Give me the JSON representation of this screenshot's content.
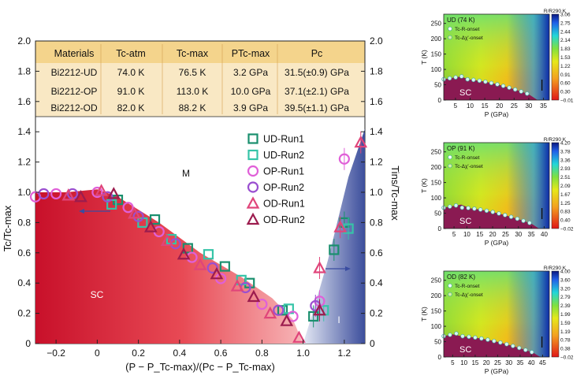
{
  "chart_data": [
    {
      "type": "scatter",
      "xlabel": "(P − P_Tc-max)/(Pc − P_Tc-max)",
      "ylabel": "Tc/Tc-max",
      "y2label": "Tins/Tc-max",
      "xlim": [
        -0.3,
        1.3
      ],
      "ylim": [
        0,
        1.45
      ],
      "xticks": [
        "−0.2",
        "0",
        "0.2",
        "0.4",
        "0.6",
        "0.8",
        "1.0",
        "1.2"
      ],
      "yticks": [
        "0",
        "0.2",
        "0.4",
        "0.6",
        "0.8",
        "1.0",
        "1.2",
        "1.4"
      ],
      "top_ticks": [
        "1.6",
        "1.8",
        "2.0"
      ],
      "regions": {
        "sc": "SC",
        "metal": "M",
        "insulator": "I"
      },
      "legend": [
        {
          "name": "UD-Run1",
          "marker": "square",
          "color": "#1a8f6e"
        },
        {
          "name": "UD-Run2",
          "marker": "square",
          "color": "#36c4a8"
        },
        {
          "name": "OP-Run1",
          "marker": "circle",
          "color": "#e060d8"
        },
        {
          "name": "OP-Run2",
          "marker": "circle",
          "color": "#9a4fd0"
        },
        {
          "name": "OD-Run1",
          "marker": "triangle",
          "color": "#e0457a"
        },
        {
          "name": "OD-Run2",
          "marker": "triangle",
          "color": "#9c1c4e"
        }
      ],
      "series": [
        {
          "name": "UD-Run1",
          "points": [
            [
              0.1,
              0.95
            ],
            [
              0.28,
              0.82
            ],
            [
              0.44,
              0.63
            ],
            [
              0.62,
              0.51
            ],
            [
              0.74,
              0.4
            ],
            [
              0.9,
              0.22
            ],
            [
              1.05,
              0.18
            ],
            [
              1.15,
              0.62
            ],
            [
              1.2,
              0.8
            ]
          ]
        },
        {
          "name": "UD-Run2",
          "points": [
            [
              0.07,
              0.92
            ],
            [
              0.22,
              0.8
            ],
            [
              0.36,
              0.69
            ],
            [
              0.54,
              0.59
            ],
            [
              0.7,
              0.42
            ],
            [
              0.93,
              0.23
            ],
            [
              1.1,
              0.22
            ],
            [
              1.22,
              0.76
            ]
          ]
        },
        {
          "name": "OP-Run1",
          "points": [
            [
              -0.3,
              0.97
            ],
            [
              -0.2,
              0.99
            ],
            [
              0.0,
              1.0
            ],
            [
              0.15,
              0.9
            ],
            [
              0.3,
              0.74
            ],
            [
              0.46,
              0.57
            ],
            [
              0.6,
              0.43
            ],
            [
              0.8,
              0.26
            ],
            [
              0.95,
              0.18
            ],
            [
              1.08,
              0.28
            ],
            [
              1.2,
              1.22
            ]
          ]
        },
        {
          "name": "OP-Run2",
          "points": [
            [
              -0.26,
              0.99
            ],
            [
              -0.12,
              0.99
            ],
            [
              0.05,
              0.97
            ],
            [
              0.2,
              0.84
            ],
            [
              0.38,
              0.66
            ],
            [
              0.56,
              0.5
            ],
            [
              0.72,
              0.37
            ],
            [
              0.88,
              0.22
            ],
            [
              1.06,
              0.25
            ]
          ]
        },
        {
          "name": "OD-Run1",
          "points": [
            [
              -0.14,
              0.98
            ],
            [
              0.02,
              1.01
            ],
            [
              0.18,
              0.86
            ],
            [
              0.34,
              0.68
            ],
            [
              0.5,
              0.52
            ],
            [
              0.68,
              0.38
            ],
            [
              0.84,
              0.2
            ],
            [
              0.98,
              0.04
            ],
            [
              1.08,
              0.5
            ],
            [
              1.18,
              0.77
            ],
            [
              1.28,
              1.33
            ]
          ]
        },
        {
          "name": "OD-Run2",
          "points": [
            [
              -0.08,
              0.97
            ],
            [
              0.08,
              0.99
            ],
            [
              0.26,
              0.77
            ],
            [
              0.42,
              0.59
            ],
            [
              0.58,
              0.46
            ],
            [
              0.76,
              0.31
            ],
            [
              0.92,
              0.15
            ],
            [
              1.08,
              0.22
            ]
          ]
        }
      ]
    },
    {
      "type": "table",
      "columns": [
        "Materials",
        "Tc-atm",
        "Tc-max",
        "PTc-max",
        "Pc"
      ],
      "rows": [
        [
          "Bi2212-UD",
          "74.0 K",
          "76.5 K",
          "3.2 GPa",
          "31.5(±0.9) GPa"
        ],
        [
          "Bi2212-OP",
          "91.0 K",
          "113.0 K",
          "10.0 GPa",
          "37.1(±2.1) GPa"
        ],
        [
          "Bi2212-OD",
          "82.0 K",
          "88.2 K",
          "3.9 GPa",
          "39.5(±1.1) GPa"
        ]
      ]
    },
    {
      "type": "heatmap",
      "title": "UD (74 K)",
      "xlabel": "P (GPa)",
      "ylabel": "T (K)",
      "colorbar_label": "R/R290 K",
      "xticks": [
        "5",
        "10",
        "15",
        "20",
        "25",
        "30",
        "35"
      ],
      "yticks": [
        "0",
        "50",
        "100",
        "150",
        "200",
        "250"
      ],
      "colorbar_ticks": [
        "3.06",
        "2.75",
        "2.44",
        "2.14",
        "1.83",
        "1.53",
        "1.22",
        "0.91",
        "0.60",
        "0.30",
        "−0.01"
      ],
      "legend": [
        "Tc-R-onset",
        "Tc-Δχ'-onset"
      ],
      "region": "SC"
    },
    {
      "type": "heatmap",
      "title": "OP (91 K)",
      "xlabel": "P (GPa)",
      "ylabel": "T (K)",
      "colorbar_label": "R/R290 K",
      "xticks": [
        "5",
        "10",
        "15",
        "20",
        "25",
        "30",
        "35",
        "40"
      ],
      "yticks": [
        "0",
        "50",
        "100",
        "150",
        "200",
        "250"
      ],
      "colorbar_ticks": [
        "4.20",
        "3.78",
        "3.36",
        "2.93",
        "2.51",
        "2.09",
        "1.67",
        "1.25",
        "0.83",
        "0.40",
        "−0.02"
      ],
      "legend": [
        "Tc-R-onset",
        "Tc-Δχ'-onset"
      ],
      "region": "SC"
    },
    {
      "type": "heatmap",
      "title": "OD (82 K)",
      "xlabel": "P (GPa)",
      "ylabel": "T (K)",
      "colorbar_label": "R/R290 K",
      "xticks": [
        "5",
        "10",
        "15",
        "20",
        "25",
        "30",
        "35",
        "40",
        "45"
      ],
      "yticks": [
        "0",
        "50",
        "100",
        "150",
        "200",
        "250"
      ],
      "colorbar_ticks": [
        "4.00",
        "3.60",
        "3.20",
        "2.79",
        "2.39",
        "1.99",
        "1.59",
        "1.19",
        "0.78",
        "0.38",
        "−0.02"
      ],
      "legend": [
        "Tc-R-onset",
        "Tc-Δχ'-onset"
      ],
      "region": "SC"
    }
  ]
}
